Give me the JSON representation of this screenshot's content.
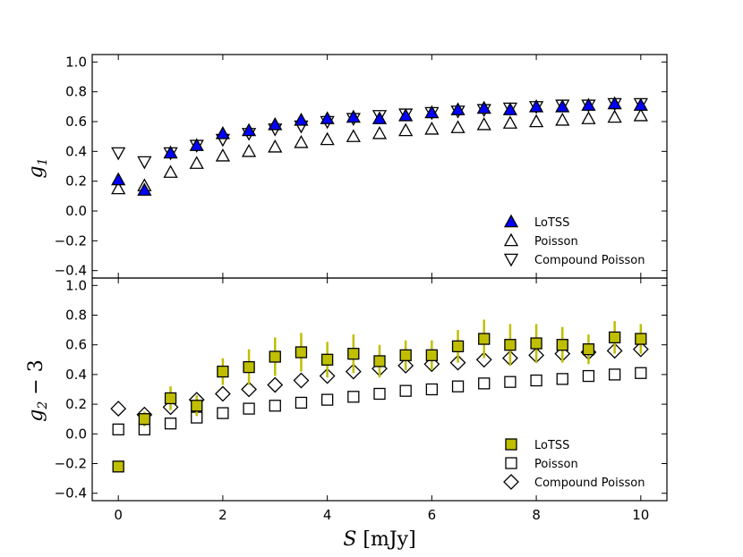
{
  "chart_data": [
    {
      "type": "scatter",
      "ylabel": "g1",
      "ylabel_main": "g",
      "ylabel_sub": "1",
      "ylim": [
        -0.45,
        1.05
      ],
      "yticks": [
        -0.4,
        -0.2,
        0.0,
        0.2,
        0.4,
        0.6,
        0.8,
        1.0
      ],
      "legend_position": "lower-right",
      "x": [
        0,
        0.5,
        1,
        1.5,
        2,
        2.5,
        3,
        3.5,
        4,
        4.5,
        5,
        5.5,
        6,
        6.5,
        7,
        7.5,
        8,
        8.5,
        9,
        9.5,
        10
      ],
      "series": [
        {
          "name": "LoTSS",
          "marker": "triangle-up",
          "fill": "#0000ff",
          "values": [
            0.21,
            0.14,
            0.39,
            0.44,
            0.52,
            0.54,
            0.58,
            0.61,
            0.62,
            0.63,
            0.62,
            0.64,
            0.66,
            0.68,
            0.69,
            0.68,
            0.7,
            0.7,
            0.71,
            0.72,
            0.71
          ],
          "errors": [
            0.02,
            0.02,
            0.03,
            0.03,
            0.03,
            0.03,
            0.03,
            0.03,
            0.03,
            0.03,
            0.03,
            0.03,
            0.03,
            0.03,
            0.03,
            0.03,
            0.03,
            0.03,
            0.03,
            0.03,
            0.03
          ]
        },
        {
          "name": "Poisson",
          "marker": "triangle-up",
          "fill": "none",
          "values": [
            0.15,
            0.17,
            0.26,
            0.32,
            0.37,
            0.4,
            0.43,
            0.46,
            0.48,
            0.5,
            0.52,
            0.54,
            0.55,
            0.56,
            0.58,
            0.59,
            0.6,
            0.61,
            0.62,
            0.63,
            0.64
          ]
        },
        {
          "name": "Compound Poisson",
          "marker": "triangle-down",
          "fill": "none",
          "values": [
            0.39,
            0.33,
            0.39,
            0.44,
            0.48,
            0.52,
            0.55,
            0.57,
            0.6,
            0.62,
            0.64,
            0.65,
            0.66,
            0.67,
            0.68,
            0.69,
            0.7,
            0.71,
            0.71,
            0.72,
            0.72
          ]
        }
      ]
    },
    {
      "type": "scatter",
      "ylabel": "g2 − 3",
      "ylabel_main": "g",
      "ylabel_sub": "2",
      "ylabel_rest": " − 3",
      "xlabel": "S [mJy]",
      "xlabel_var": "S",
      "xlabel_unit": " [mJy]",
      "xlim": [
        -0.5,
        10.5
      ],
      "xticks": [
        0,
        2,
        4,
        6,
        8,
        10
      ],
      "ylim": [
        -0.45,
        1.05
      ],
      "yticks": [
        -0.4,
        -0.2,
        0.0,
        0.2,
        0.4,
        0.6,
        0.8,
        1.0
      ],
      "legend_position": "lower-right",
      "x": [
        0,
        0.5,
        1,
        1.5,
        2,
        2.5,
        3,
        3.5,
        4,
        4.5,
        5,
        5.5,
        6,
        6.5,
        7,
        7.5,
        8,
        8.5,
        9,
        9.5,
        10
      ],
      "series": [
        {
          "name": "LoTSS",
          "marker": "square",
          "fill": "#bfbf00",
          "values": [
            -0.22,
            0.1,
            0.24,
            0.19,
            0.42,
            0.45,
            0.52,
            0.55,
            0.5,
            0.54,
            0.49,
            0.53,
            0.53,
            0.59,
            0.64,
            0.6,
            0.61,
            0.6,
            0.57,
            0.65,
            0.64
          ],
          "errors": [
            0.02,
            0.05,
            0.08,
            0.07,
            0.09,
            0.12,
            0.13,
            0.13,
            0.12,
            0.13,
            0.11,
            0.1,
            0.1,
            0.11,
            0.13,
            0.14,
            0.13,
            0.12,
            0.1,
            0.11,
            0.1
          ]
        },
        {
          "name": "Poisson",
          "marker": "square",
          "fill": "none",
          "values": [
            0.03,
            0.03,
            0.07,
            0.11,
            0.14,
            0.17,
            0.19,
            0.21,
            0.23,
            0.25,
            0.27,
            0.29,
            0.3,
            0.32,
            0.34,
            0.35,
            0.36,
            0.37,
            0.39,
            0.4,
            0.41
          ]
        },
        {
          "name": "Compound Poisson",
          "marker": "diamond",
          "fill": "none",
          "values": [
            0.17,
            0.13,
            0.18,
            0.23,
            0.27,
            0.3,
            0.33,
            0.36,
            0.39,
            0.42,
            0.44,
            0.46,
            0.47,
            0.48,
            0.5,
            0.51,
            0.53,
            0.54,
            0.55,
            0.56,
            0.57
          ]
        }
      ]
    }
  ]
}
